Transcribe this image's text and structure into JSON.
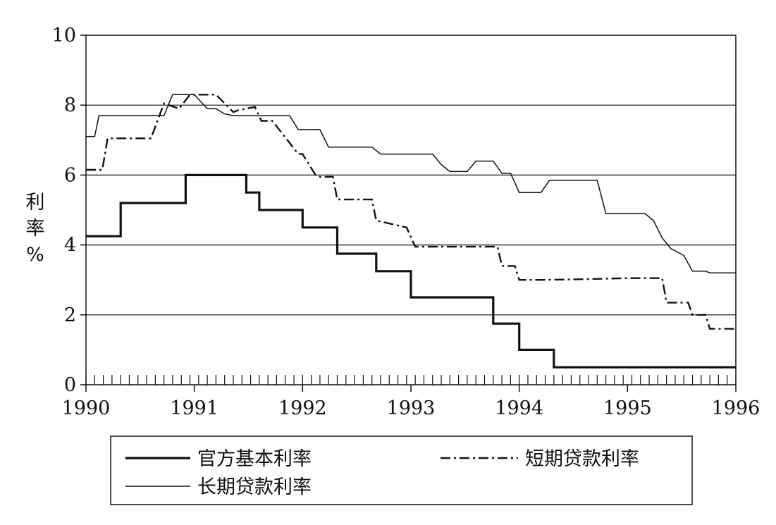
{
  "chart_data": {
    "type": "line",
    "ylabel": "利率%",
    "ylim": [
      0,
      10
    ],
    "xlim": [
      1990,
      1996
    ],
    "y_ticks": [
      "0",
      "2",
      "4",
      "6",
      "8",
      "10"
    ],
    "x_ticks": [
      "1990",
      "1991",
      "1992",
      "1993",
      "1994",
      "1995",
      "1996"
    ],
    "grid": "horizontal",
    "legend_position": "bottom",
    "series": [
      {
        "name": "官方基本利率",
        "style": "solid-thick",
        "color": "#111111",
        "x": [
          1990.0,
          1990.32,
          1990.32,
          1990.92,
          1990.92,
          1991.48,
          1991.48,
          1991.6,
          1991.6,
          1992.0,
          1992.0,
          1992.32,
          1992.32,
          1992.68,
          1992.68,
          1993.0,
          1993.0,
          1993.76,
          1993.76,
          1994.0,
          1994.0,
          1994.32,
          1994.32,
          1994.68,
          1994.68,
          1995.0,
          1995.0,
          1995.36,
          1995.36,
          1995.68,
          1995.68,
          1996.0
        ],
        "y": [
          4.25,
          4.25,
          5.2,
          5.2,
          6.0,
          6.0,
          5.5,
          5.5,
          5.0,
          5.0,
          4.5,
          4.5,
          3.75,
          3.75,
          3.25,
          3.25,
          2.5,
          2.5,
          1.75,
          1.75,
          1.0,
          1.0,
          0.5,
          0.5,
          0.5,
          0.5,
          0.5,
          0.5,
          0.5,
          0.5,
          0.5,
          0.5
        ]
      },
      {
        "name": "短期贷款利率",
        "style": "dash-dot",
        "color": "#111111",
        "x": [
          1990.0,
          1990.15,
          1990.2,
          1990.6,
          1990.72,
          1990.86,
          1990.96,
          1991.16,
          1991.2,
          1991.36,
          1991.4,
          1991.56,
          1991.62,
          1991.72,
          1991.86,
          1991.96,
          1992.0,
          1992.12,
          1992.16,
          1992.28,
          1992.32,
          1992.64,
          1992.68,
          1992.96,
          1993.04,
          1993.44,
          1993.48,
          1993.8,
          1993.84,
          1993.96,
          1994.0,
          1994.2,
          1994.6,
          1995.0,
          1995.32,
          1995.36,
          1995.56,
          1995.6,
          1995.72,
          1995.76,
          1996.0
        ],
        "y": [
          6.15,
          6.15,
          7.05,
          7.05,
          8.05,
          7.9,
          8.3,
          8.3,
          8.3,
          7.8,
          7.85,
          7.95,
          7.55,
          7.55,
          7.0,
          6.6,
          6.6,
          6.0,
          5.95,
          5.95,
          5.3,
          5.3,
          4.7,
          4.5,
          3.95,
          3.95,
          3.95,
          3.95,
          3.4,
          3.4,
          3.0,
          3.0,
          3.02,
          3.05,
          3.05,
          2.35,
          2.35,
          2.0,
          2.0,
          1.6,
          1.6
        ]
      },
      {
        "name": "长期贷款利率",
        "style": "solid-thin",
        "color": "#111111",
        "x": [
          1990.0,
          1990.08,
          1990.12,
          1990.72,
          1990.8,
          1990.92,
          1991.0,
          1991.12,
          1991.2,
          1991.28,
          1991.36,
          1991.44,
          1991.52,
          1991.88,
          1991.96,
          1992.16,
          1992.24,
          1992.64,
          1992.72,
          1993.2,
          1993.28,
          1993.36,
          1993.52,
          1993.6,
          1993.76,
          1993.84,
          1993.92,
          1994.0,
          1994.2,
          1994.28,
          1994.72,
          1994.8,
          1995.0,
          1995.16,
          1995.24,
          1995.32,
          1995.4,
          1995.52,
          1995.6,
          1995.72,
          1995.76,
          1996.0
        ],
        "y": [
          7.1,
          7.1,
          7.7,
          7.7,
          8.3,
          8.3,
          8.3,
          7.9,
          7.9,
          7.75,
          7.7,
          7.7,
          7.7,
          7.7,
          7.3,
          7.3,
          6.8,
          6.8,
          6.6,
          6.6,
          6.3,
          6.1,
          6.1,
          6.4,
          6.4,
          6.05,
          6.05,
          5.5,
          5.5,
          5.85,
          5.85,
          4.9,
          4.9,
          4.9,
          4.7,
          4.2,
          3.9,
          3.7,
          3.25,
          3.25,
          3.2,
          3.2
        ]
      }
    ]
  }
}
